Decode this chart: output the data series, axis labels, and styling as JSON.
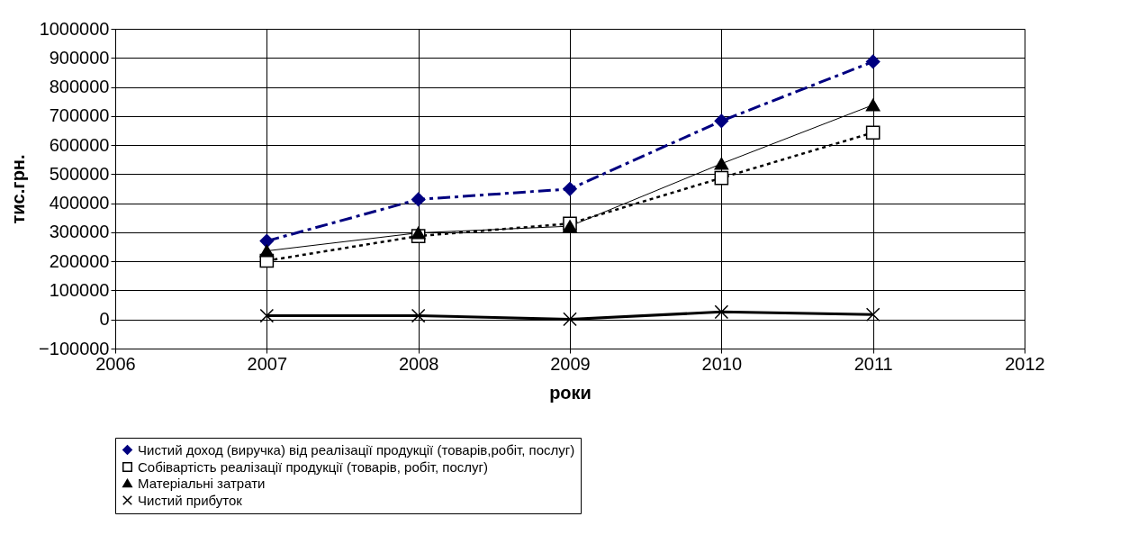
{
  "chart_data": {
    "type": "line",
    "xlabel": "роки",
    "ylabel": "тис.грн.",
    "x": [
      2007,
      2008,
      2009,
      2010,
      2011
    ],
    "xlim": [
      2006,
      2012
    ],
    "xticks": [
      2006,
      2007,
      2008,
      2009,
      2010,
      2011,
      2012
    ],
    "ylim": [
      -100000,
      1000000
    ],
    "yticks": [
      -100000,
      0,
      100000,
      200000,
      300000,
      400000,
      500000,
      600000,
      700000,
      800000,
      900000,
      1000000
    ],
    "grid": true,
    "legend": "bottom",
    "series": [
      {
        "name": "Чистий доход (виручка) від реалізації продукції (товарів,робіт, послуг)",
        "color": "#000080",
        "values": [
          270000,
          413000,
          449000,
          683000,
          887000
        ],
        "marker": "diamond",
        "line_style": "dashed"
      },
      {
        "name": "Собівартість реалізації продукції (товарів, робіт, послуг)",
        "color": "#000000",
        "values": [
          202000,
          287000,
          330000,
          487000,
          643000
        ],
        "marker": "square",
        "line_style": "dotted"
      },
      {
        "name": "Матеріальні затрати",
        "color": "#000000",
        "values": [
          236000,
          298000,
          321000,
          536000,
          738000
        ],
        "marker": "triangle",
        "line_style": "solid"
      },
      {
        "name": "Чистий прибуток",
        "color": "#000000",
        "values": [
          13000,
          13000,
          1000,
          26000,
          17000
        ],
        "marker": "cross",
        "line_style": "solid"
      }
    ]
  }
}
